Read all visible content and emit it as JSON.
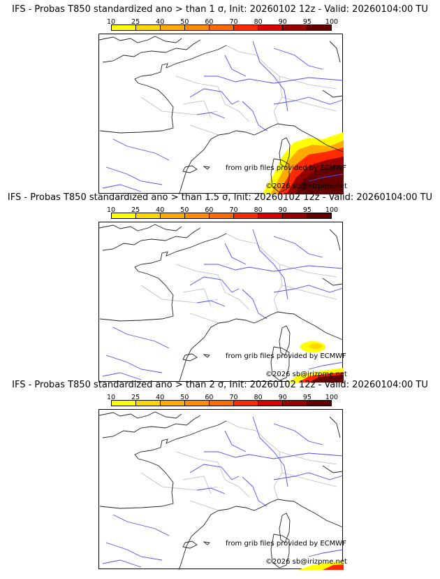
{
  "chart_data": [
    {
      "type": "heatmap",
      "title": "IFS - Probas T850  standardized ano > than 1 σ, Init: 20260102 12z - Valid: 20260104:00 TU",
      "threshold_sigma": 1,
      "high_probability_region": "south-east corner (Ligurian/Tyrrhenian Sea, Italy), up to 100%",
      "coverage": "large"
    },
    {
      "type": "heatmap",
      "title": "IFS - Probas T850  standardized ano > than 1.5 σ, Init: 20260102 12z - Valid: 20260104:00 TU",
      "threshold_sigma": 1.5,
      "high_probability_region": "small 10-40% patch east of Corsica; 70-100% at bottom-right corner",
      "coverage": "medium"
    },
    {
      "type": "heatmap",
      "title": "IFS - Probas T850  standardized ano > than 2 σ, Init: 20260102 12z - Valid: 20260104:00 TU",
      "threshold_sigma": 2,
      "high_probability_region": "bottom-right corner only, 10-90%",
      "coverage": "small"
    }
  ],
  "colorbar": {
    "ticks": [
      "10",
      "25",
      "40",
      "50",
      "60",
      "70",
      "80",
      "90",
      "95",
      "100"
    ],
    "colors": [
      "#ffff00",
      "#ffd700",
      "#ffaa00",
      "#ff8c00",
      "#ff6a00",
      "#ff2a00",
      "#d80000",
      "#990000",
      "#640000"
    ]
  },
  "credits": {
    "source": "from grib files provided by ECMWF",
    "copyright": "©2026 sb@irizpme.net"
  }
}
